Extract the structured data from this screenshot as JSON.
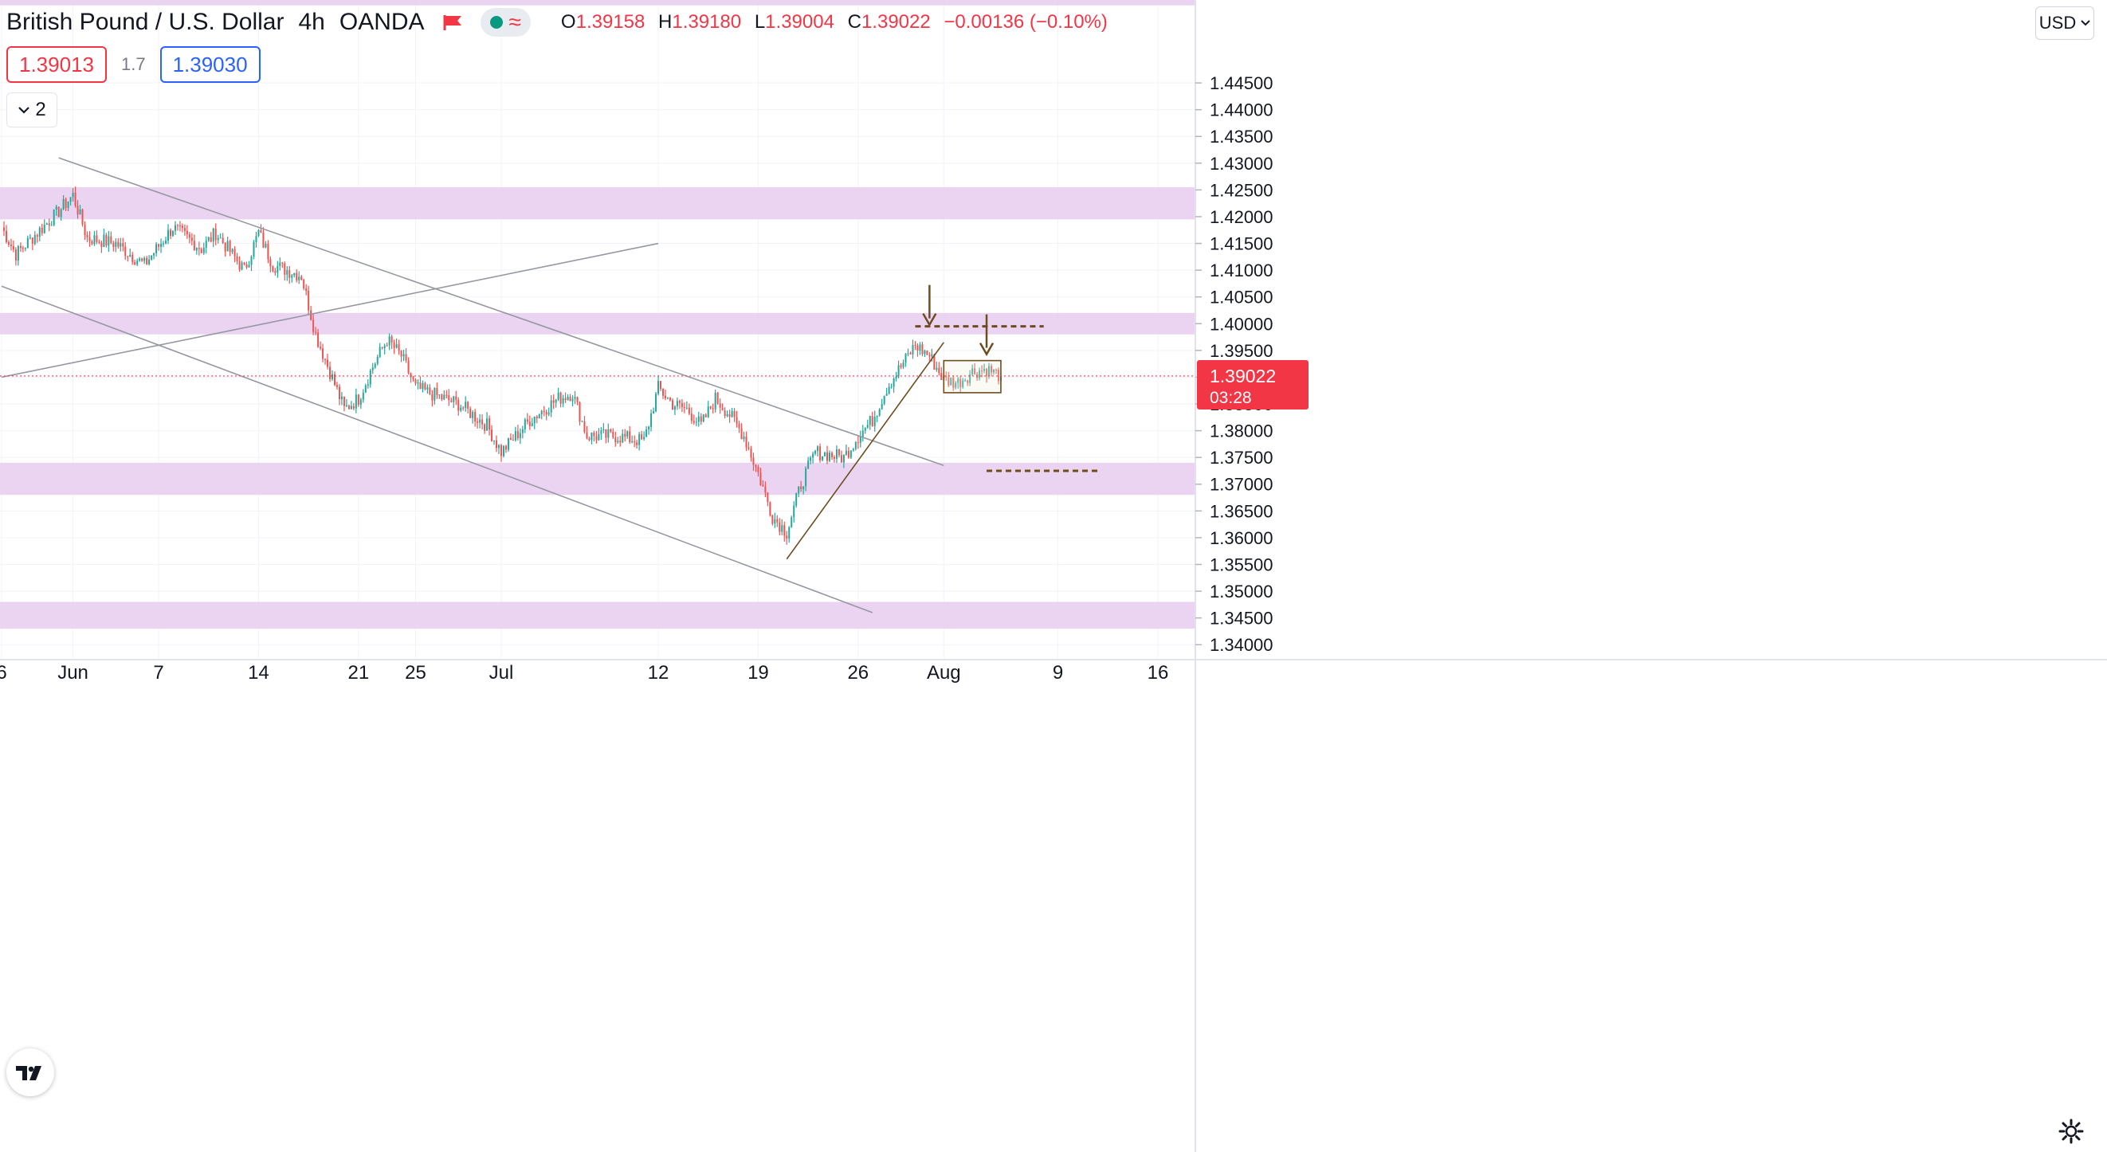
{
  "header": {
    "symbol": "British Pound / U.S. Dollar",
    "interval": "4h",
    "exchange": "OANDA",
    "ohlc": {
      "o_label": "O",
      "o": "1.39158",
      "h_label": "H",
      "h": "1.39180",
      "l_label": "L",
      "l": "1.39004",
      "c_label": "C",
      "c": "1.39022",
      "change": "−0.00136 (−0.10%)"
    }
  },
  "trade": {
    "sell": "1.39013",
    "spread": "1.7",
    "buy": "1.39030"
  },
  "indicators_toggle": {
    "count": "2"
  },
  "currency_button": {
    "label": "USD"
  },
  "colors": {
    "up": "#26a69a",
    "down": "#ef5350",
    "zone": "#e7cdee",
    "trendline": "#9598a1",
    "annotation": "#6d4c1f",
    "price_tag": "#f23645"
  },
  "chart_data": {
    "type": "candlestick",
    "ylim": [
      1.3375,
      1.4605
    ],
    "y_ticks": [
      1.34,
      1.345,
      1.35,
      1.355,
      1.36,
      1.365,
      1.37,
      1.375,
      1.38,
      1.385,
      1.39,
      1.395,
      1.4,
      1.405,
      1.41,
      1.415,
      1.42,
      1.425,
      1.43,
      1.435,
      1.44,
      1.445
    ],
    "y_tick_labels": [
      "1.34000",
      "1.34500",
      "1.35000",
      "1.35500",
      "1.36000",
      "1.36500",
      "1.37000",
      "1.37500",
      "1.38000",
      "1.38500",
      "1.39000",
      "1.39500",
      "1.40000",
      "1.40500",
      "1.41000",
      "1.41500",
      "1.42000",
      "1.42500",
      "1.43000",
      "1.43500",
      "1.44000",
      "1.44500"
    ],
    "x_labels": [
      {
        "label": "6",
        "date": "2021-05-27"
      },
      {
        "label": "Jun",
        "date": "2021-06-01"
      },
      {
        "label": "7",
        "date": "2021-06-07"
      },
      {
        "label": "14",
        "date": "2021-06-14"
      },
      {
        "label": "21",
        "date": "2021-06-21"
      },
      {
        "label": "25",
        "date": "2021-06-25"
      },
      {
        "label": "Jul",
        "date": "2021-07-01"
      },
      {
        "label": "12",
        "date": "2021-07-12"
      },
      {
        "label": "19",
        "date": "2021-07-19"
      },
      {
        "label": "26",
        "date": "2021-07-26"
      },
      {
        "label": "Aug",
        "date": "2021-08-01"
      },
      {
        "label": "9",
        "date": "2021-08-09"
      },
      {
        "label": "16",
        "date": "2021-08-16"
      }
    ],
    "key_points": [
      {
        "date": "2021-05-27",
        "price": 1.418
      },
      {
        "date": "2021-05-28",
        "price": 1.413
      },
      {
        "date": "2021-05-31",
        "price": 1.421
      },
      {
        "date": "2021-06-01",
        "price": 1.424
      },
      {
        "date": "2021-06-02",
        "price": 1.416
      },
      {
        "date": "2021-06-04",
        "price": 1.415
      },
      {
        "date": "2021-06-06",
        "price": 1.411
      },
      {
        "date": "2021-06-08",
        "price": 1.418
      },
      {
        "date": "2021-06-10",
        "price": 1.414
      },
      {
        "date": "2021-06-11",
        "price": 1.417
      },
      {
        "date": "2021-06-13",
        "price": 1.41
      },
      {
        "date": "2021-06-14",
        "price": 1.417
      },
      {
        "date": "2021-06-15",
        "price": 1.411
      },
      {
        "date": "2021-06-16",
        "price": 1.41
      },
      {
        "date": "2021-06-17",
        "price": 1.409
      },
      {
        "date": "2021-06-18",
        "price": 1.398
      },
      {
        "date": "2021-06-20",
        "price": 1.384
      },
      {
        "date": "2021-06-21",
        "price": 1.386
      },
      {
        "date": "2021-06-22",
        "price": 1.392
      },
      {
        "date": "2021-06-23",
        "price": 1.397
      },
      {
        "date": "2021-06-24",
        "price": 1.394
      },
      {
        "date": "2021-06-25",
        "price": 1.388
      },
      {
        "date": "2021-06-28",
        "price": 1.385
      },
      {
        "date": "2021-06-30",
        "price": 1.381
      },
      {
        "date": "2021-07-01",
        "price": 1.376
      },
      {
        "date": "2021-07-03",
        "price": 1.382
      },
      {
        "date": "2021-07-05",
        "price": 1.386
      },
      {
        "date": "2021-07-06",
        "price": 1.387
      },
      {
        "date": "2021-07-07",
        "price": 1.379
      },
      {
        "date": "2021-07-09",
        "price": 1.379
      },
      {
        "date": "2021-07-11",
        "price": 1.378
      },
      {
        "date": "2021-07-12",
        "price": 1.388
      },
      {
        "date": "2021-07-13",
        "price": 1.385
      },
      {
        "date": "2021-07-14",
        "price": 1.384
      },
      {
        "date": "2021-07-15",
        "price": 1.381
      },
      {
        "date": "2021-07-16",
        "price": 1.386
      },
      {
        "date": "2021-07-17",
        "price": 1.383
      },
      {
        "date": "2021-07-18",
        "price": 1.379
      },
      {
        "date": "2021-07-19",
        "price": 1.372
      },
      {
        "date": "2021-07-20",
        "price": 1.364
      },
      {
        "date": "2021-07-21",
        "price": 1.361
      },
      {
        "date": "2021-07-22",
        "price": 1.37
      },
      {
        "date": "2021-07-23",
        "price": 1.376
      },
      {
        "date": "2021-07-25",
        "price": 1.375
      },
      {
        "date": "2021-07-26",
        "price": 1.379
      },
      {
        "date": "2021-07-27",
        "price": 1.382
      },
      {
        "date": "2021-07-28",
        "price": 1.388
      },
      {
        "date": "2021-07-29",
        "price": 1.392
      },
      {
        "date": "2021-07-30",
        "price": 1.396
      },
      {
        "date": "2021-07-31",
        "price": 1.394
      },
      {
        "date": "2021-08-01",
        "price": 1.3895
      },
      {
        "date": "2021-08-02",
        "price": 1.389
      },
      {
        "date": "2021-08-03",
        "price": 1.391
      },
      {
        "date": "2021-08-04",
        "price": 1.3915
      },
      {
        "date": "2021-08-05",
        "price": 1.39022
      }
    ],
    "zones": [
      {
        "from": 1.4595,
        "to": 1.4625
      },
      {
        "from": 1.4195,
        "to": 1.4255
      },
      {
        "from": 1.398,
        "to": 1.402
      },
      {
        "from": 1.368,
        "to": 1.374
      },
      {
        "from": 1.343,
        "to": 1.348
      }
    ],
    "trendlines": [
      {
        "from": {
          "date": "2021-05-31",
          "price": 1.431
        },
        "to": {
          "date": "2021-08-01",
          "price": 1.3735
        }
      },
      {
        "from": {
          "date": "2021-05-27",
          "price": 1.407
        },
        "to": {
          "date": "2021-07-27",
          "price": 1.346
        }
      },
      {
        "from": {
          "date": "2021-05-27",
          "price": 1.39
        },
        "to": {
          "date": "2021-07-12",
          "price": 1.415
        }
      },
      {
        "from": {
          "date": "2021-07-21",
          "price": 1.356
        },
        "to": {
          "date": "2021-08-01",
          "price": 1.3965
        },
        "kind": "support"
      }
    ],
    "horizontal_levels": [
      {
        "price": 1.3995,
        "from": "2021-07-30",
        "to": "2021-08-08"
      },
      {
        "price": 1.3725,
        "from": "2021-08-04",
        "to": "2021-08-12"
      }
    ],
    "arrows": [
      {
        "date": "2021-07-31",
        "price": 1.3995
      },
      {
        "date": "2021-08-04",
        "price": 1.394
      }
    ],
    "box": {
      "from": "2021-08-01",
      "to": "2021-08-05",
      "high": 1.3931,
      "low": 1.3871
    },
    "last_price": {
      "value": "1.39022",
      "countdown": "03:28",
      "price": 1.39022
    }
  }
}
